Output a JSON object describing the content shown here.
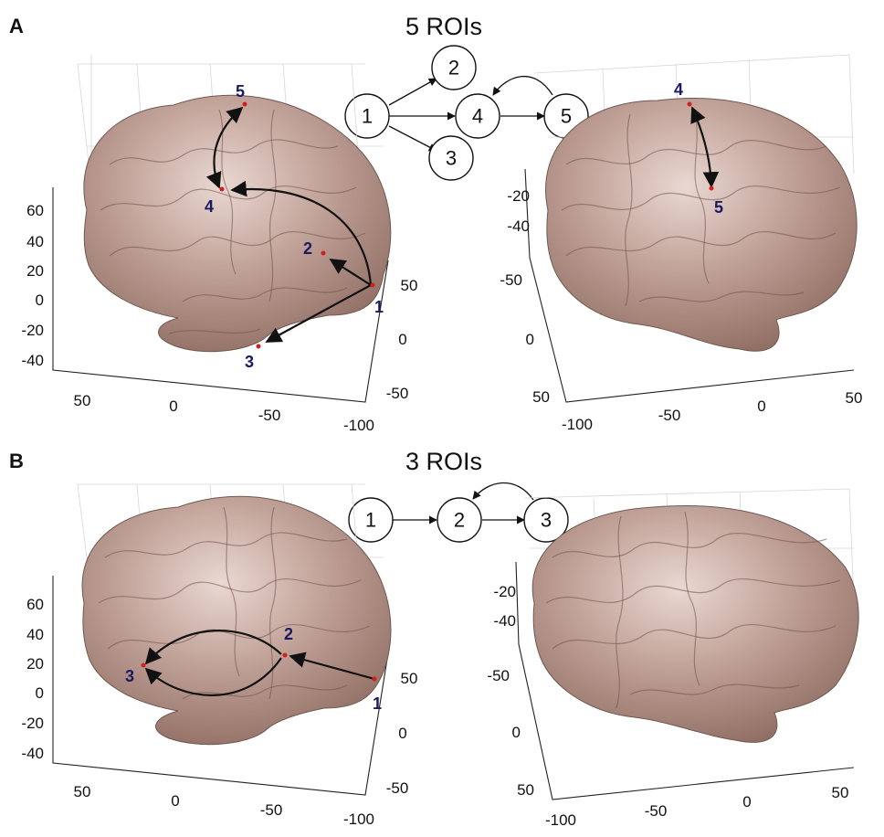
{
  "panels": [
    {
      "letter": "A",
      "title": "5 ROIs",
      "graph_nodes": [
        "1",
        "2",
        "3",
        "4",
        "5"
      ],
      "graph_edges": [
        [
          "1",
          "2"
        ],
        [
          "1",
          "3"
        ],
        [
          "1",
          "4"
        ],
        [
          "4",
          "5"
        ],
        [
          "5",
          "4"
        ]
      ],
      "left_view": {
        "z_ticks": [
          "60",
          "40",
          "20",
          "0",
          "-20",
          "-40"
        ],
        "x_ticks": [
          "50",
          "0",
          "-50",
          "-100"
        ],
        "y_ticks": [
          "50",
          "0",
          "-50"
        ],
        "roi_labels": [
          "5",
          "4",
          "2",
          "1",
          "3"
        ]
      },
      "right_view": {
        "z_ticks": [
          "-20",
          "-40"
        ],
        "y_ticks": [
          "-50",
          "0",
          "50"
        ],
        "x_ticks": [
          "-100",
          "-50",
          "0",
          "50"
        ],
        "roi_labels": [
          "4",
          "5"
        ]
      }
    },
    {
      "letter": "B",
      "title": "3 ROIs",
      "graph_nodes": [
        "1",
        "2",
        "3"
      ],
      "graph_edges": [
        [
          "1",
          "2"
        ],
        [
          "2",
          "3"
        ],
        [
          "3",
          "2"
        ]
      ],
      "left_view": {
        "z_ticks": [
          "60",
          "40",
          "20",
          "0",
          "-20",
          "-40"
        ],
        "x_ticks": [
          "50",
          "0",
          "-50",
          "-100"
        ],
        "y_ticks": [
          "50",
          "0",
          "-50"
        ],
        "roi_labels": [
          "2",
          "3",
          "1"
        ]
      },
      "right_view": {
        "z_ticks": [
          "-20",
          "-40"
        ],
        "y_ticks": [
          "-50",
          "0",
          "50"
        ],
        "x_ticks": [
          "-100",
          "-50",
          "0",
          "50"
        ],
        "roi_labels": []
      }
    }
  ],
  "colors": {
    "brain": "#b08e84",
    "roi_dot": "#d22020",
    "roi_label": "#1a1a60"
  }
}
